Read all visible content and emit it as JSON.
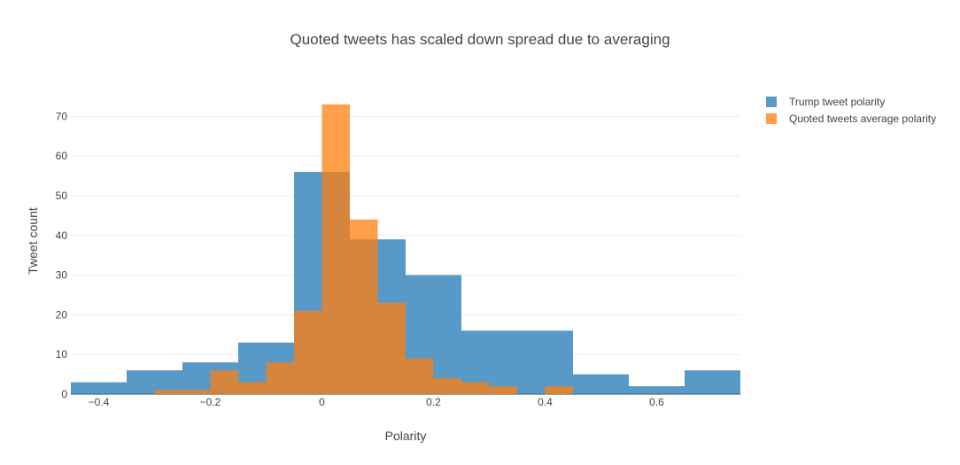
{
  "chart_data": {
    "type": "bar",
    "title": "Quoted tweets has scaled down spread due to averaging",
    "xlabel": "Polarity",
    "ylabel": "Tweet count",
    "xlim": [
      -0.45,
      0.75
    ],
    "ylim": [
      0,
      79
    ],
    "grid": true,
    "legend_position": "top-right",
    "barmode": "overlay",
    "x_ticks": [
      -0.4,
      -0.2,
      0,
      0.2,
      0.4,
      0.6
    ],
    "x_tick_labels": [
      "−0.4",
      "−0.2",
      "0",
      "0.2",
      "0.4",
      "0.6"
    ],
    "y_ticks": [
      0,
      10,
      20,
      30,
      40,
      50,
      60,
      70
    ],
    "y_tick_labels": [
      "0",
      "10",
      "20",
      "30",
      "40",
      "50",
      "60",
      "70"
    ],
    "series": [
      {
        "name": "Trump tweet polarity",
        "color": "#1f77b4",
        "bins": [
          {
            "x0": -0.45,
            "x1": -0.35,
            "count": 3
          },
          {
            "x0": -0.35,
            "x1": -0.25,
            "count": 6
          },
          {
            "x0": -0.25,
            "x1": -0.15,
            "count": 8
          },
          {
            "x0": -0.15,
            "x1": -0.05,
            "count": 13
          },
          {
            "x0": -0.05,
            "x1": 0.05,
            "count": 56
          },
          {
            "x0": 0.05,
            "x1": 0.15,
            "count": 39
          },
          {
            "x0": 0.15,
            "x1": 0.25,
            "count": 30
          },
          {
            "x0": 0.25,
            "x1": 0.35,
            "count": 16
          },
          {
            "x0": 0.35,
            "x1": 0.45,
            "count": 16
          },
          {
            "x0": 0.45,
            "x1": 0.55,
            "count": 5
          },
          {
            "x0": 0.55,
            "x1": 0.65,
            "count": 2
          },
          {
            "x0": 0.65,
            "x1": 0.75,
            "count": 6
          }
        ]
      },
      {
        "name": "Quoted tweets average polarity",
        "color": "#ff7f0e",
        "bins": [
          {
            "x0": -0.3,
            "x1": -0.2,
            "count": 1
          },
          {
            "x0": -0.2,
            "x1": -0.15,
            "count": 6
          },
          {
            "x0": -0.15,
            "x1": -0.1,
            "count": 3
          },
          {
            "x0": -0.1,
            "x1": -0.05,
            "count": 8
          },
          {
            "x0": -0.05,
            "x1": 0.0,
            "count": 21
          },
          {
            "x0": 0.0,
            "x1": 0.05,
            "count": 73
          },
          {
            "x0": 0.05,
            "x1": 0.1,
            "count": 44
          },
          {
            "x0": 0.1,
            "x1": 0.15,
            "count": 23
          },
          {
            "x0": 0.15,
            "x1": 0.2,
            "count": 9
          },
          {
            "x0": 0.2,
            "x1": 0.25,
            "count": 4
          },
          {
            "x0": 0.25,
            "x1": 0.3,
            "count": 3
          },
          {
            "x0": 0.3,
            "x1": 0.35,
            "count": 2
          },
          {
            "x0": 0.4,
            "x1": 0.45,
            "count": 2
          }
        ]
      }
    ]
  }
}
